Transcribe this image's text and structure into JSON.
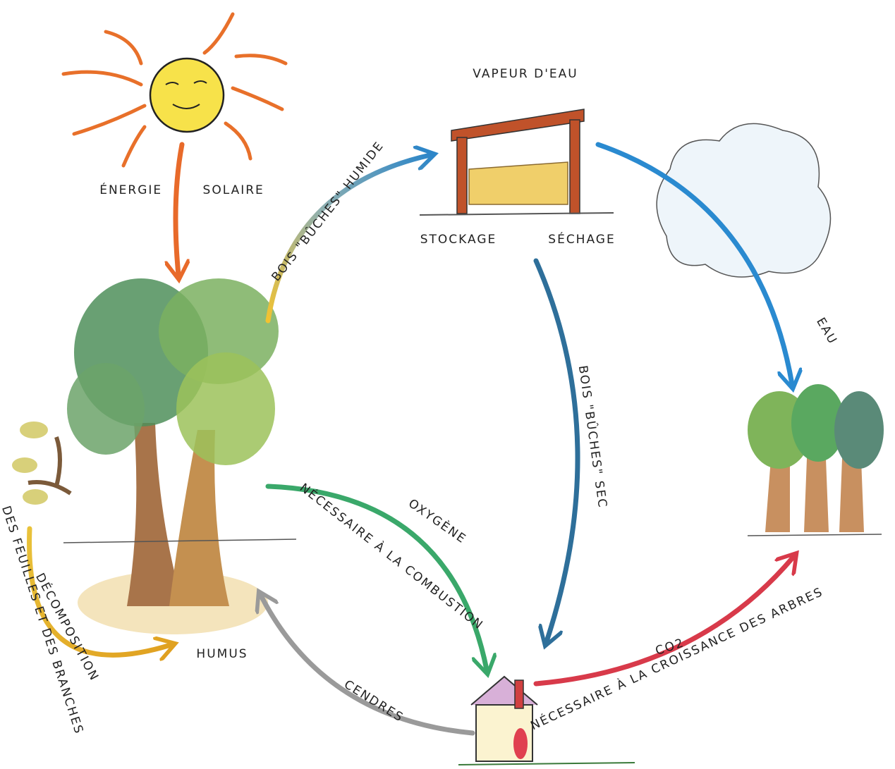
{
  "labels": {
    "solar_energy": "ÉNERGIE SOLAIRE",
    "water_vapor": "VAPEUR D'EAU",
    "storage": "STOCKAGE",
    "drying": "SÉCHAGE",
    "wet_wood": "BOIS \"BÛCHES\" HUMIDE",
    "dry_wood": "BOIS \"BÛCHES\" SEC",
    "water": "EAU",
    "oxygen": "OXYGÈNE",
    "oxygen_need": "NÉCESSAIRE À LA COMBUSTION",
    "humus": "HUMUS",
    "decomposition": "DÉCOMPOSITION",
    "decomposition_detail": "DES FEUILLES ET DES BRANCHES",
    "ashes": "CENDRES",
    "co2": "CO2",
    "co2_need": "NÉCESSAIRE À LA CROISSANCE DES ARBRES"
  }
}
